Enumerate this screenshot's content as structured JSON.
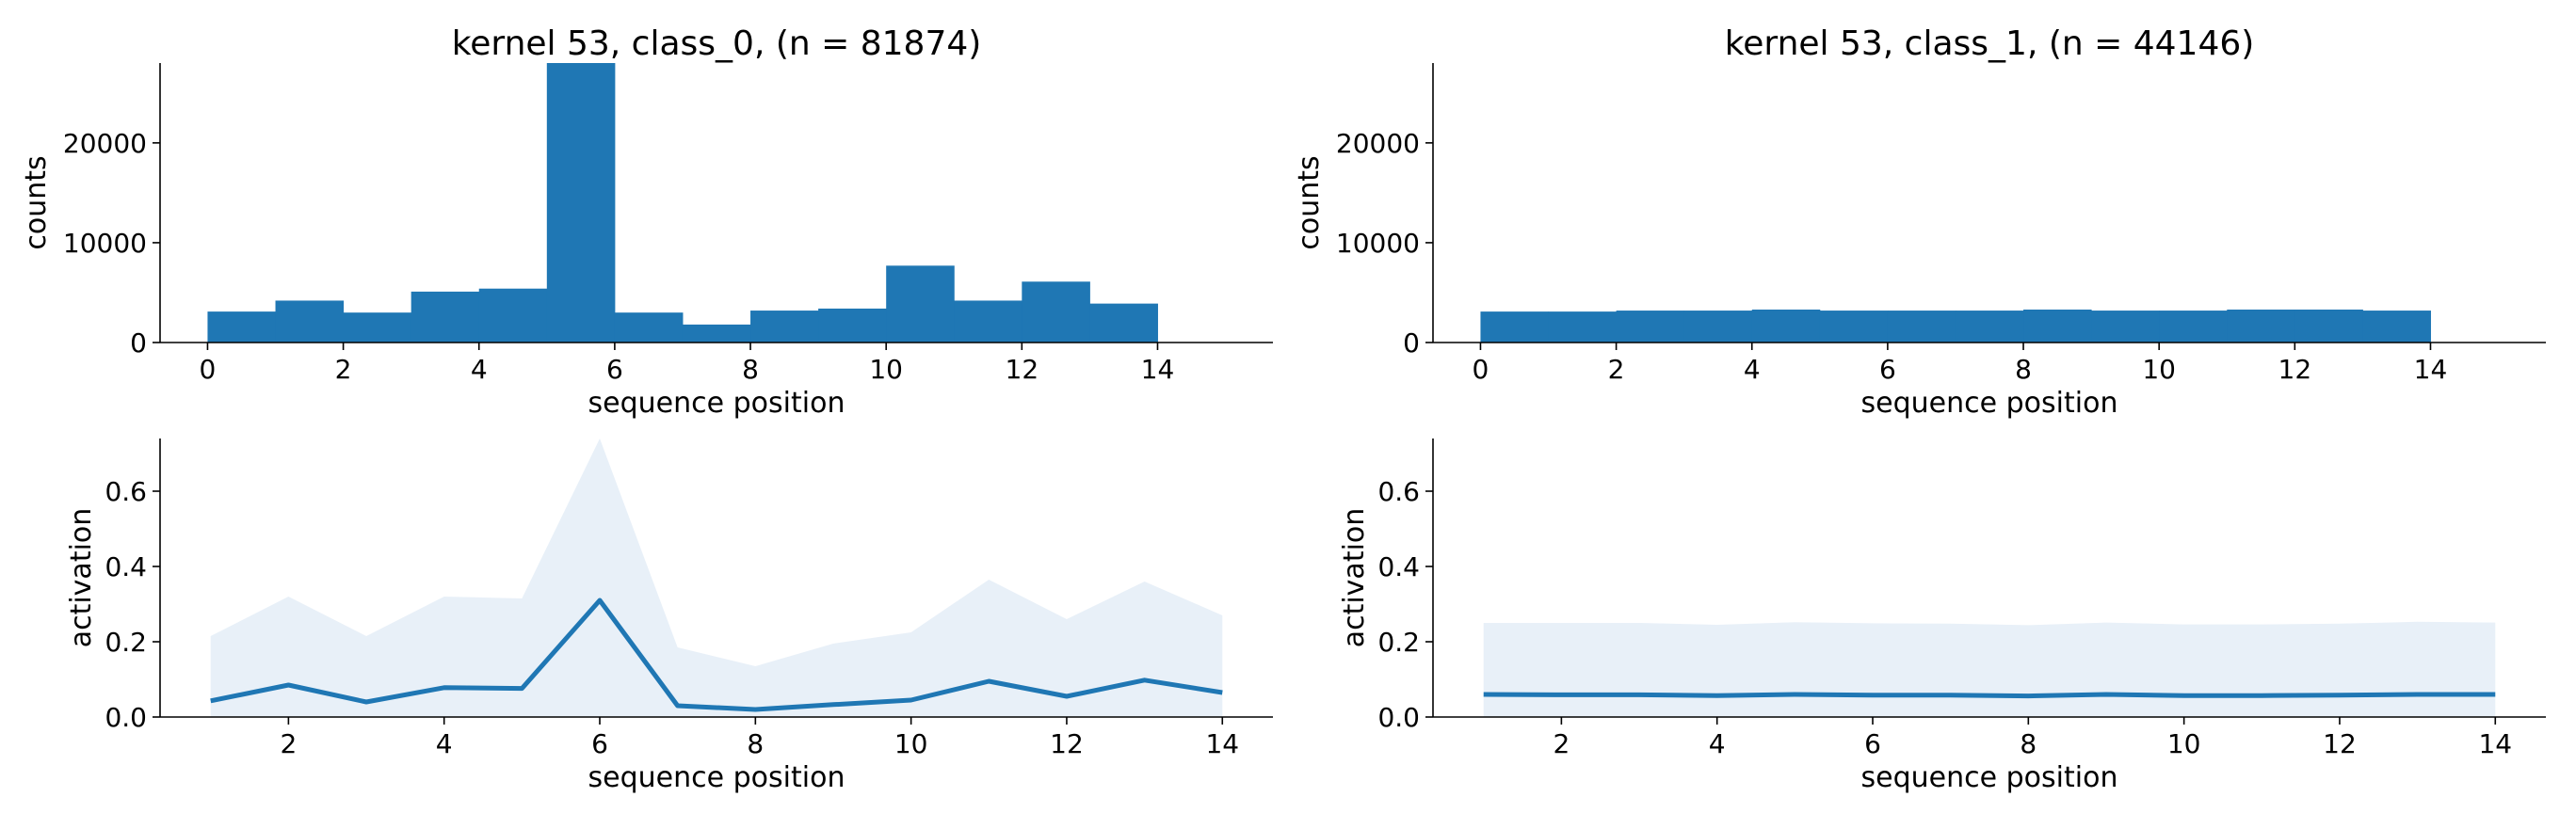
{
  "colors": {
    "bar": "#1f77b4",
    "line": "#1f77b4",
    "band": "#e8f0f8",
    "axis": "#000000"
  },
  "chart_data": [
    {
      "type": "bar",
      "title": "kernel 53, class_0, (n = 81874)",
      "xlabel": "sequence position",
      "ylabel": "counts",
      "xlim": [
        -0.7,
        15.7
      ],
      "ylim": [
        0,
        28000
      ],
      "xticks": [
        0,
        2,
        4,
        6,
        8,
        10,
        12,
        14
      ],
      "yticks": [
        0,
        10000,
        20000
      ],
      "bin_edges": [
        0,
        1,
        2,
        3,
        4,
        5,
        6,
        7,
        8,
        9,
        10,
        11,
        12,
        13,
        14
      ],
      "values": [
        3100,
        4200,
        3000,
        5100,
        5400,
        28000,
        3000,
        1800,
        3200,
        3400,
        7700,
        4200,
        6100,
        3900
      ]
    },
    {
      "type": "bar",
      "title": "kernel 53, class_1, (n = 44146)",
      "xlabel": "sequence position",
      "ylabel": "counts",
      "xlim": [
        -0.7,
        15.7
      ],
      "ylim": [
        0,
        28000
      ],
      "xticks": [
        0,
        2,
        4,
        6,
        8,
        10,
        12,
        14
      ],
      "yticks": [
        0,
        10000,
        20000
      ],
      "bin_edges": [
        0,
        1,
        2,
        3,
        4,
        5,
        6,
        7,
        8,
        9,
        10,
        11,
        12,
        13,
        14
      ],
      "values": [
        3100,
        3100,
        3200,
        3200,
        3300,
        3200,
        3200,
        3200,
        3300,
        3200,
        3200,
        3300,
        3300,
        3200
      ]
    },
    {
      "type": "line",
      "title": "",
      "xlabel": "sequence position",
      "ylabel": "activation",
      "xlim": [
        0.35,
        14.65
      ],
      "ylim": [
        0,
        0.74
      ],
      "xticks": [
        2,
        4,
        6,
        8,
        10,
        12,
        14
      ],
      "yticks": [
        "0.0",
        "0.2",
        "0.4",
        "0.6"
      ],
      "x": [
        1,
        2,
        3,
        4,
        5,
        6,
        7,
        8,
        9,
        10,
        11,
        12,
        13,
        14
      ],
      "series": [
        {
          "values": [
            0.043,
            0.085,
            0.04,
            0.078,
            0.076,
            0.31,
            0.03,
            0.02,
            0.033,
            0.045,
            0.095,
            0.055,
            0.098,
            0.065
          ]
        }
      ],
      "band_upper": [
        0.215,
        0.32,
        0.215,
        0.32,
        0.315,
        0.74,
        0.185,
        0.135,
        0.195,
        0.225,
        0.365,
        0.26,
        0.36,
        0.27
      ],
      "band_lower": [
        0,
        0,
        0,
        0,
        0,
        0,
        0,
        0,
        0,
        0,
        0,
        0,
        0,
        0
      ]
    },
    {
      "type": "line",
      "title": "",
      "xlabel": "sequence position",
      "ylabel": "activation",
      "xlim": [
        0.35,
        14.65
      ],
      "ylim": [
        0,
        0.74
      ],
      "xticks": [
        2,
        4,
        6,
        8,
        10,
        12,
        14
      ],
      "yticks": [
        "0.0",
        "0.2",
        "0.4",
        "0.6"
      ],
      "x": [
        1,
        2,
        3,
        4,
        5,
        6,
        7,
        8,
        9,
        10,
        11,
        12,
        13,
        14
      ],
      "series": [
        {
          "values": [
            0.06,
            0.059,
            0.059,
            0.057,
            0.06,
            0.058,
            0.058,
            0.056,
            0.06,
            0.057,
            0.057,
            0.058,
            0.06,
            0.06
          ]
        }
      ],
      "band_upper": [
        0.25,
        0.25,
        0.25,
        0.245,
        0.252,
        0.249,
        0.248,
        0.244,
        0.251,
        0.246,
        0.246,
        0.248,
        0.253,
        0.251
      ],
      "band_lower": [
        0,
        0,
        0,
        0,
        0,
        0,
        0,
        0,
        0,
        0,
        0,
        0,
        0,
        0
      ]
    }
  ]
}
